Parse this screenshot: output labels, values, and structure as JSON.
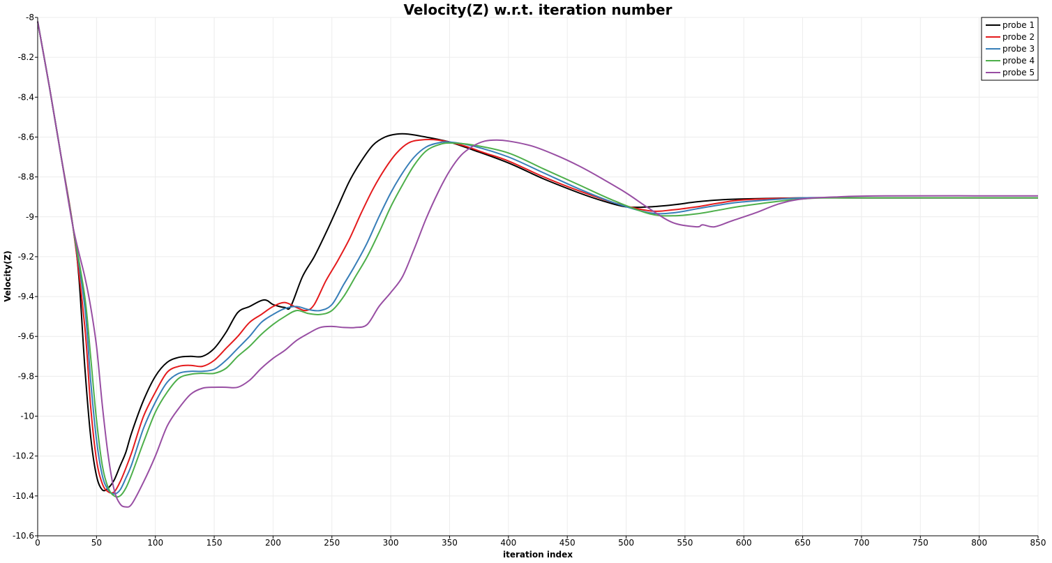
{
  "chart_data": {
    "type": "line",
    "title": "Velocity(Z) w.r.t. iteration number",
    "xlabel": "iteration index",
    "ylabel": "Velocity(Z)",
    "xlim": [
      0,
      850
    ],
    "ylim": [
      -10.6,
      -8.0
    ],
    "x_ticks": [
      0,
      50,
      100,
      150,
      200,
      250,
      300,
      350,
      400,
      450,
      500,
      550,
      600,
      650,
      700,
      750,
      800,
      850
    ],
    "x_tick_labels": [
      "0",
      "50",
      "100",
      "150",
      "200",
      "250",
      "300",
      "350",
      "400",
      "450",
      "500",
      "550",
      "600",
      "650",
      "700",
      "750",
      "800",
      "850"
    ],
    "y_ticks": [
      -8.0,
      -8.2,
      -8.4,
      -8.6,
      -8.8,
      -9.0,
      -9.2,
      -9.4,
      -9.6,
      -9.8,
      -10.0,
      -10.2,
      -10.4,
      -10.6
    ],
    "y_tick_labels": [
      "-8",
      "-8.2",
      "-8.4",
      "-8.6",
      "-8.8",
      "-9",
      "-9.2",
      "-9.4",
      "-9.6",
      "-9.8",
      "-10",
      "-10.2",
      "-10.4",
      "-10.6"
    ],
    "grid": true,
    "legend_position": "top-right",
    "series": [
      {
        "name": "probe 1",
        "color": "#000000",
        "points": [
          [
            0,
            -8.02
          ],
          [
            10,
            -8.35
          ],
          [
            20,
            -8.7
          ],
          [
            30,
            -9.05
          ],
          [
            35,
            -9.3
          ],
          [
            40,
            -9.75
          ],
          [
            45,
            -10.1
          ],
          [
            50,
            -10.3
          ],
          [
            55,
            -10.37
          ],
          [
            60,
            -10.36
          ],
          [
            65,
            -10.32
          ],
          [
            70,
            -10.25
          ],
          [
            75,
            -10.18
          ],
          [
            80,
            -10.08
          ],
          [
            90,
            -9.92
          ],
          [
            100,
            -9.8
          ],
          [
            110,
            -9.73
          ],
          [
            120,
            -9.705
          ],
          [
            130,
            -9.7
          ],
          [
            140,
            -9.7
          ],
          [
            150,
            -9.66
          ],
          [
            160,
            -9.58
          ],
          [
            170,
            -9.48
          ],
          [
            180,
            -9.45
          ],
          [
            190,
            -9.42
          ],
          [
            195,
            -9.42
          ],
          [
            200,
            -9.44
          ],
          [
            210,
            -9.455
          ],
          [
            215,
            -9.45
          ],
          [
            225,
            -9.3
          ],
          [
            235,
            -9.2
          ],
          [
            245,
            -9.08
          ],
          [
            255,
            -8.95
          ],
          [
            265,
            -8.82
          ],
          [
            275,
            -8.72
          ],
          [
            285,
            -8.64
          ],
          [
            295,
            -8.6
          ],
          [
            305,
            -8.585
          ],
          [
            315,
            -8.585
          ],
          [
            330,
            -8.6
          ],
          [
            350,
            -8.625
          ],
          [
            370,
            -8.665
          ],
          [
            400,
            -8.73
          ],
          [
            430,
            -8.81
          ],
          [
            460,
            -8.88
          ],
          [
            480,
            -8.92
          ],
          [
            500,
            -8.95
          ],
          [
            520,
            -8.95
          ],
          [
            540,
            -8.94
          ],
          [
            560,
            -8.925
          ],
          [
            580,
            -8.915
          ],
          [
            600,
            -8.91
          ],
          [
            650,
            -8.905
          ],
          [
            700,
            -8.905
          ],
          [
            850,
            -8.905
          ]
        ]
      },
      {
        "name": "probe 2",
        "color": "#e41a1c",
        "points": [
          [
            0,
            -8.02
          ],
          [
            10,
            -8.35
          ],
          [
            20,
            -8.7
          ],
          [
            30,
            -9.05
          ],
          [
            40,
            -9.55
          ],
          [
            45,
            -9.95
          ],
          [
            50,
            -10.22
          ],
          [
            55,
            -10.34
          ],
          [
            60,
            -10.38
          ],
          [
            65,
            -10.38
          ],
          [
            70,
            -10.33
          ],
          [
            75,
            -10.26
          ],
          [
            80,
            -10.18
          ],
          [
            90,
            -10.0
          ],
          [
            100,
            -9.88
          ],
          [
            110,
            -9.78
          ],
          [
            120,
            -9.75
          ],
          [
            130,
            -9.745
          ],
          [
            140,
            -9.75
          ],
          [
            150,
            -9.72
          ],
          [
            160,
            -9.66
          ],
          [
            170,
            -9.6
          ],
          [
            180,
            -9.53
          ],
          [
            190,
            -9.49
          ],
          [
            200,
            -9.45
          ],
          [
            210,
            -9.43
          ],
          [
            220,
            -9.455
          ],
          [
            228,
            -9.47
          ],
          [
            235,
            -9.44
          ],
          [
            245,
            -9.32
          ],
          [
            255,
            -9.22
          ],
          [
            265,
            -9.11
          ],
          [
            275,
            -8.98
          ],
          [
            285,
            -8.86
          ],
          [
            295,
            -8.76
          ],
          [
            305,
            -8.68
          ],
          [
            315,
            -8.63
          ],
          [
            325,
            -8.615
          ],
          [
            340,
            -8.615
          ],
          [
            360,
            -8.64
          ],
          [
            380,
            -8.68
          ],
          [
            400,
            -8.72
          ],
          [
            430,
            -8.8
          ],
          [
            460,
            -8.87
          ],
          [
            490,
            -8.93
          ],
          [
            520,
            -8.97
          ],
          [
            540,
            -8.965
          ],
          [
            560,
            -8.95
          ],
          [
            580,
            -8.93
          ],
          [
            600,
            -8.915
          ],
          [
            650,
            -8.905
          ],
          [
            700,
            -8.905
          ],
          [
            850,
            -8.905
          ]
        ]
      },
      {
        "name": "probe 3",
        "color": "#377eb8",
        "points": [
          [
            0,
            -8.02
          ],
          [
            10,
            -8.35
          ],
          [
            20,
            -8.7
          ],
          [
            30,
            -9.05
          ],
          [
            40,
            -9.45
          ],
          [
            45,
            -9.82
          ],
          [
            50,
            -10.12
          ],
          [
            55,
            -10.3
          ],
          [
            60,
            -10.37
          ],
          [
            65,
            -10.39
          ],
          [
            70,
            -10.37
          ],
          [
            75,
            -10.31
          ],
          [
            80,
            -10.24
          ],
          [
            90,
            -10.06
          ],
          [
            100,
            -9.93
          ],
          [
            110,
            -9.83
          ],
          [
            120,
            -9.785
          ],
          [
            130,
            -9.775
          ],
          [
            140,
            -9.775
          ],
          [
            150,
            -9.765
          ],
          [
            160,
            -9.72
          ],
          [
            170,
            -9.66
          ],
          [
            180,
            -9.6
          ],
          [
            190,
            -9.53
          ],
          [
            200,
            -9.49
          ],
          [
            210,
            -9.46
          ],
          [
            220,
            -9.45
          ],
          [
            230,
            -9.465
          ],
          [
            240,
            -9.47
          ],
          [
            250,
            -9.44
          ],
          [
            260,
            -9.34
          ],
          [
            270,
            -9.24
          ],
          [
            280,
            -9.13
          ],
          [
            290,
            -9.0
          ],
          [
            300,
            -8.88
          ],
          [
            310,
            -8.78
          ],
          [
            320,
            -8.7
          ],
          [
            330,
            -8.65
          ],
          [
            340,
            -8.63
          ],
          [
            350,
            -8.625
          ],
          [
            370,
            -8.645
          ],
          [
            400,
            -8.7
          ],
          [
            430,
            -8.78
          ],
          [
            460,
            -8.86
          ],
          [
            490,
            -8.93
          ],
          [
            520,
            -8.98
          ],
          [
            540,
            -8.98
          ],
          [
            560,
            -8.96
          ],
          [
            580,
            -8.94
          ],
          [
            600,
            -8.925
          ],
          [
            650,
            -8.905
          ],
          [
            700,
            -8.905
          ],
          [
            850,
            -8.905
          ]
        ]
      },
      {
        "name": "probe 4",
        "color": "#4daf4a",
        "points": [
          [
            0,
            -8.02
          ],
          [
            10,
            -8.35
          ],
          [
            20,
            -8.7
          ],
          [
            30,
            -9.05
          ],
          [
            40,
            -9.4
          ],
          [
            45,
            -9.7
          ],
          [
            50,
            -10.02
          ],
          [
            55,
            -10.25
          ],
          [
            60,
            -10.36
          ],
          [
            65,
            -10.4
          ],
          [
            70,
            -10.4
          ],
          [
            75,
            -10.36
          ],
          [
            80,
            -10.29
          ],
          [
            90,
            -10.13
          ],
          [
            100,
            -9.98
          ],
          [
            110,
            -9.88
          ],
          [
            120,
            -9.81
          ],
          [
            130,
            -9.79
          ],
          [
            140,
            -9.785
          ],
          [
            150,
            -9.785
          ],
          [
            160,
            -9.76
          ],
          [
            170,
            -9.7
          ],
          [
            180,
            -9.65
          ],
          [
            190,
            -9.59
          ],
          [
            200,
            -9.54
          ],
          [
            210,
            -9.5
          ],
          [
            220,
            -9.47
          ],
          [
            230,
            -9.485
          ],
          [
            240,
            -9.49
          ],
          [
            250,
            -9.47
          ],
          [
            260,
            -9.4
          ],
          [
            270,
            -9.3
          ],
          [
            280,
            -9.2
          ],
          [
            290,
            -9.08
          ],
          [
            300,
            -8.95
          ],
          [
            310,
            -8.84
          ],
          [
            320,
            -8.74
          ],
          [
            330,
            -8.67
          ],
          [
            340,
            -8.64
          ],
          [
            350,
            -8.63
          ],
          [
            370,
            -8.64
          ],
          [
            400,
            -8.68
          ],
          [
            430,
            -8.76
          ],
          [
            460,
            -8.84
          ],
          [
            490,
            -8.92
          ],
          [
            520,
            -8.985
          ],
          [
            540,
            -8.995
          ],
          [
            560,
            -8.985
          ],
          [
            580,
            -8.965
          ],
          [
            600,
            -8.945
          ],
          [
            650,
            -8.91
          ],
          [
            700,
            -8.905
          ],
          [
            850,
            -8.905
          ]
        ]
      },
      {
        "name": "probe 5",
        "color": "#984ea3",
        "points": [
          [
            0,
            -8.02
          ],
          [
            10,
            -8.35
          ],
          [
            20,
            -8.7
          ],
          [
            30,
            -9.05
          ],
          [
            40,
            -9.3
          ],
          [
            45,
            -9.45
          ],
          [
            50,
            -9.65
          ],
          [
            55,
            -9.95
          ],
          [
            60,
            -10.2
          ],
          [
            65,
            -10.37
          ],
          [
            70,
            -10.44
          ],
          [
            75,
            -10.455
          ],
          [
            80,
            -10.44
          ],
          [
            90,
            -10.33
          ],
          [
            100,
            -10.2
          ],
          [
            110,
            -10.05
          ],
          [
            120,
            -9.96
          ],
          [
            130,
            -9.89
          ],
          [
            140,
            -9.86
          ],
          [
            150,
            -9.855
          ],
          [
            160,
            -9.855
          ],
          [
            170,
            -9.855
          ],
          [
            180,
            -9.82
          ],
          [
            190,
            -9.76
          ],
          [
            200,
            -9.71
          ],
          [
            210,
            -9.67
          ],
          [
            220,
            -9.62
          ],
          [
            230,
            -9.585
          ],
          [
            240,
            -9.555
          ],
          [
            250,
            -9.55
          ],
          [
            260,
            -9.555
          ],
          [
            270,
            -9.555
          ],
          [
            280,
            -9.54
          ],
          [
            290,
            -9.45
          ],
          [
            300,
            -9.38
          ],
          [
            310,
            -9.3
          ],
          [
            320,
            -9.16
          ],
          [
            330,
            -9.01
          ],
          [
            340,
            -8.88
          ],
          [
            350,
            -8.77
          ],
          [
            360,
            -8.69
          ],
          [
            370,
            -8.645
          ],
          [
            380,
            -8.62
          ],
          [
            390,
            -8.615
          ],
          [
            400,
            -8.62
          ],
          [
            420,
            -8.645
          ],
          [
            440,
            -8.69
          ],
          [
            460,
            -8.745
          ],
          [
            480,
            -8.81
          ],
          [
            500,
            -8.88
          ],
          [
            520,
            -8.96
          ],
          [
            540,
            -9.03
          ],
          [
            560,
            -9.05
          ],
          [
            565,
            -9.04
          ],
          [
            575,
            -9.05
          ],
          [
            590,
            -9.02
          ],
          [
            610,
            -8.98
          ],
          [
            630,
            -8.935
          ],
          [
            650,
            -8.91
          ],
          [
            680,
            -8.9
          ],
          [
            720,
            -8.895
          ],
          [
            850,
            -8.895
          ]
        ]
      }
    ]
  }
}
